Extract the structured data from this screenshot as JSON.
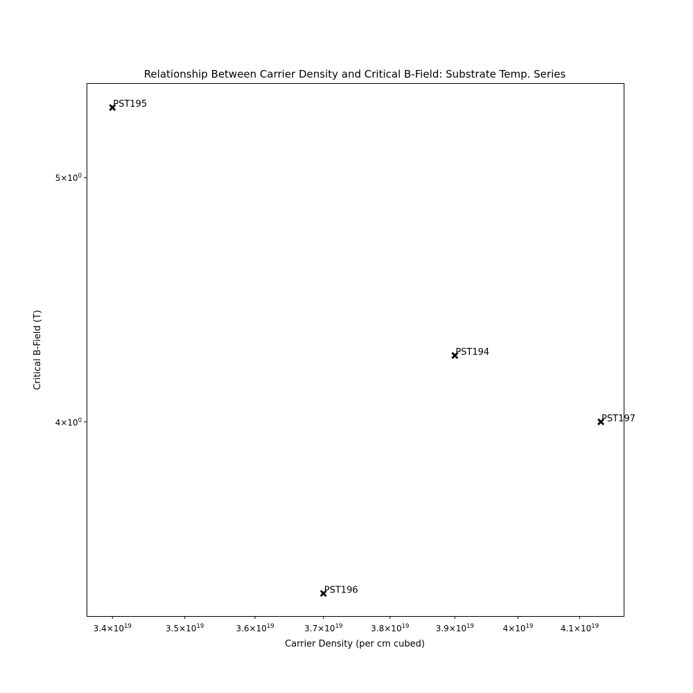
{
  "chart_data": {
    "type": "scatter",
    "title": "Relationship Between Carrier Density and Critical B-Field: Substrate Temp. Series",
    "xlabel": "Carrier Density (per cm cubed)",
    "ylabel": "Critical B-Field (T)",
    "x_scale": "log",
    "y_scale": "log",
    "xlim": [
      3.365e+19,
      4.173e+19
    ],
    "ylim": [
      3.35,
      5.45
    ],
    "grid": false,
    "marker": "X",
    "marker_color": "#000000",
    "x_ticks": [
      {
        "value": 3.4e+19,
        "mantissa": "3.4",
        "exponent": "19"
      },
      {
        "value": 3.5e+19,
        "mantissa": "3.5",
        "exponent": "19"
      },
      {
        "value": 3.6e+19,
        "mantissa": "3.6",
        "exponent": "19"
      },
      {
        "value": 3.7e+19,
        "mantissa": "3.7",
        "exponent": "19"
      },
      {
        "value": 3.8e+19,
        "mantissa": "3.8",
        "exponent": "19"
      },
      {
        "value": 3.9e+19,
        "mantissa": "3.9",
        "exponent": "19"
      },
      {
        "value": 4e+19,
        "mantissa": "4",
        "exponent": "19"
      },
      {
        "value": 4.1e+19,
        "mantissa": "4.1",
        "exponent": "19"
      }
    ],
    "y_ticks": [
      {
        "value": 4,
        "mantissa": "4",
        "exponent": "0"
      },
      {
        "value": 5,
        "mantissa": "5",
        "exponent": "0"
      }
    ],
    "points": [
      {
        "label": "PST195",
        "x": 3.4e+19,
        "y": 5.33
      },
      {
        "label": "PST194",
        "x": 3.9e+19,
        "y": 4.25
      },
      {
        "label": "PST197",
        "x": 4.135e+19,
        "y": 4.0
      },
      {
        "label": "PST196",
        "x": 3.7e+19,
        "y": 3.42
      }
    ]
  }
}
